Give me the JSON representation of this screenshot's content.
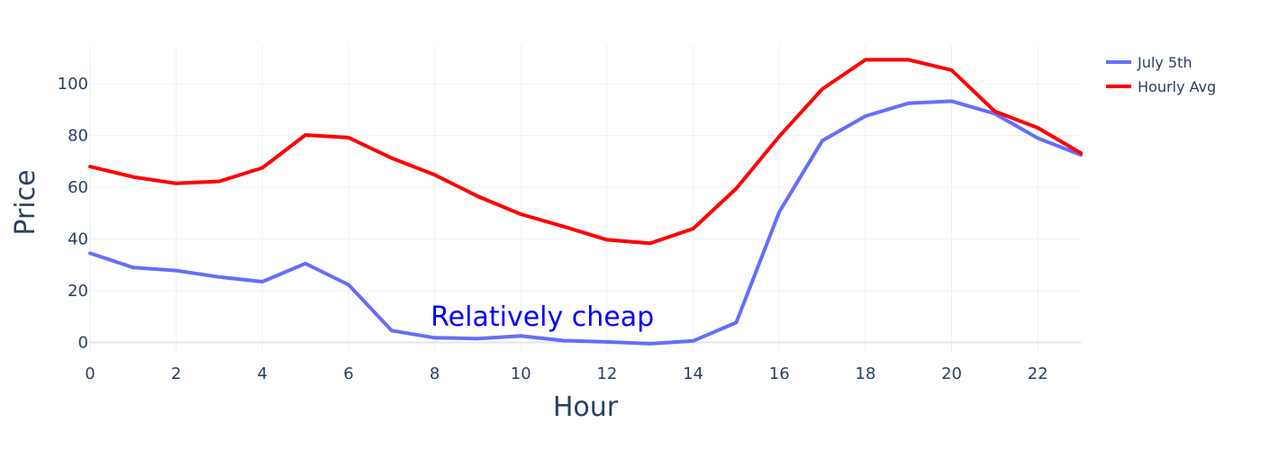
{
  "chart_data": {
    "type": "line",
    "title": "",
    "xlabel": "Hour",
    "ylabel": "Price",
    "xlim": [
      0,
      23
    ],
    "ylim": [
      -4,
      115
    ],
    "x_ticks": [
      0,
      2,
      4,
      6,
      8,
      10,
      12,
      14,
      16,
      18,
      20,
      22
    ],
    "y_ticks": [
      0,
      20,
      40,
      60,
      80,
      100
    ],
    "grid": true,
    "legend_position": "top-right",
    "x": [
      0,
      1,
      2,
      3,
      4,
      5,
      6,
      7,
      8,
      9,
      10,
      11,
      12,
      13,
      14,
      15,
      16,
      17,
      18,
      19,
      20,
      21,
      22,
      23
    ],
    "series": [
      {
        "name": "July 5th",
        "color": "#636efa",
        "values": [
          34.5,
          29,
          27.8,
          25.3,
          23.5,
          30.5,
          22.3,
          4.6,
          1.8,
          1.5,
          2.5,
          0.7,
          0.2,
          -0.5,
          0.6,
          7.7,
          50.5,
          78,
          87.5,
          92.5,
          93.3,
          88.5,
          79,
          72.5
        ]
      },
      {
        "name": "Hourly Avg",
        "color": "#ff0000",
        "values": [
          68,
          64,
          61.5,
          62.3,
          67.5,
          80.2,
          79.2,
          71.3,
          64.8,
          56.5,
          49.6,
          44.8,
          39.7,
          38.3,
          44,
          59.5,
          79.7,
          98,
          109.3,
          109.3,
          105.3,
          89.4,
          83,
          73.2
        ]
      }
    ],
    "annotations": [
      {
        "text": "Relatively cheap",
        "x": 10.5,
        "y": 10,
        "color": "#0000ff"
      }
    ]
  }
}
